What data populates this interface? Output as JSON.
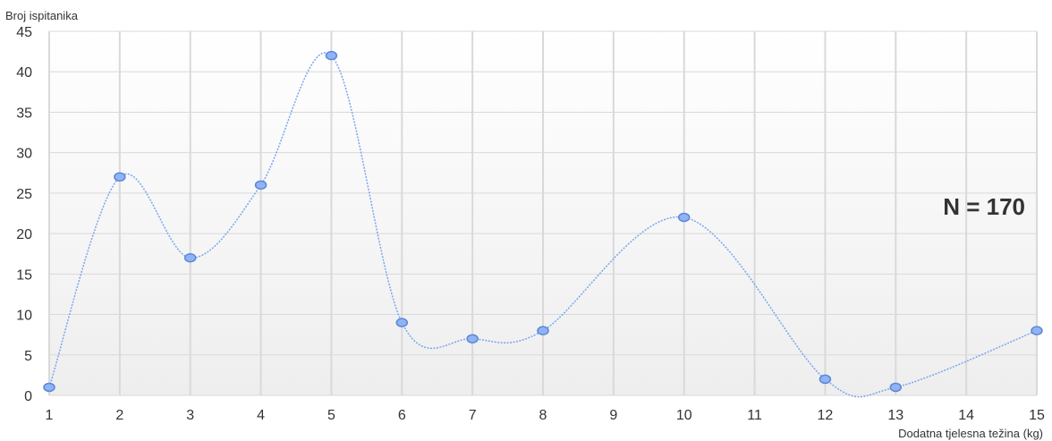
{
  "chart_data": {
    "type": "line",
    "title": "",
    "ylabel": "Broj ispitanika",
    "xlabel": "Dodatna tjelesna težina (kg)",
    "x_ticks": [
      "1",
      "2",
      "3",
      "4",
      "5",
      "6",
      "7",
      "8",
      "9",
      "10",
      "11",
      "12",
      "13",
      "14",
      "15"
    ],
    "y_ticks": [
      "0",
      "5",
      "10",
      "15",
      "20",
      "25",
      "30",
      "35",
      "40",
      "45"
    ],
    "xlim": [
      1,
      15
    ],
    "ylim": [
      0,
      45
    ],
    "grid": true,
    "smooth": true,
    "series": [
      {
        "x": [
          1,
          2,
          3,
          4,
          5,
          6,
          7,
          8,
          10,
          12,
          13,
          15
        ],
        "y": [
          1,
          27,
          17,
          26,
          42,
          9,
          7,
          8,
          22,
          2,
          1,
          8
        ]
      }
    ],
    "annotation": "N = 170",
    "colors": {
      "line": "#7aa5f0",
      "marker_fill": "#8fb3f5",
      "marker_stroke": "#5b86d6",
      "grid": "#d9d9d9",
      "text": "#333333"
    }
  }
}
